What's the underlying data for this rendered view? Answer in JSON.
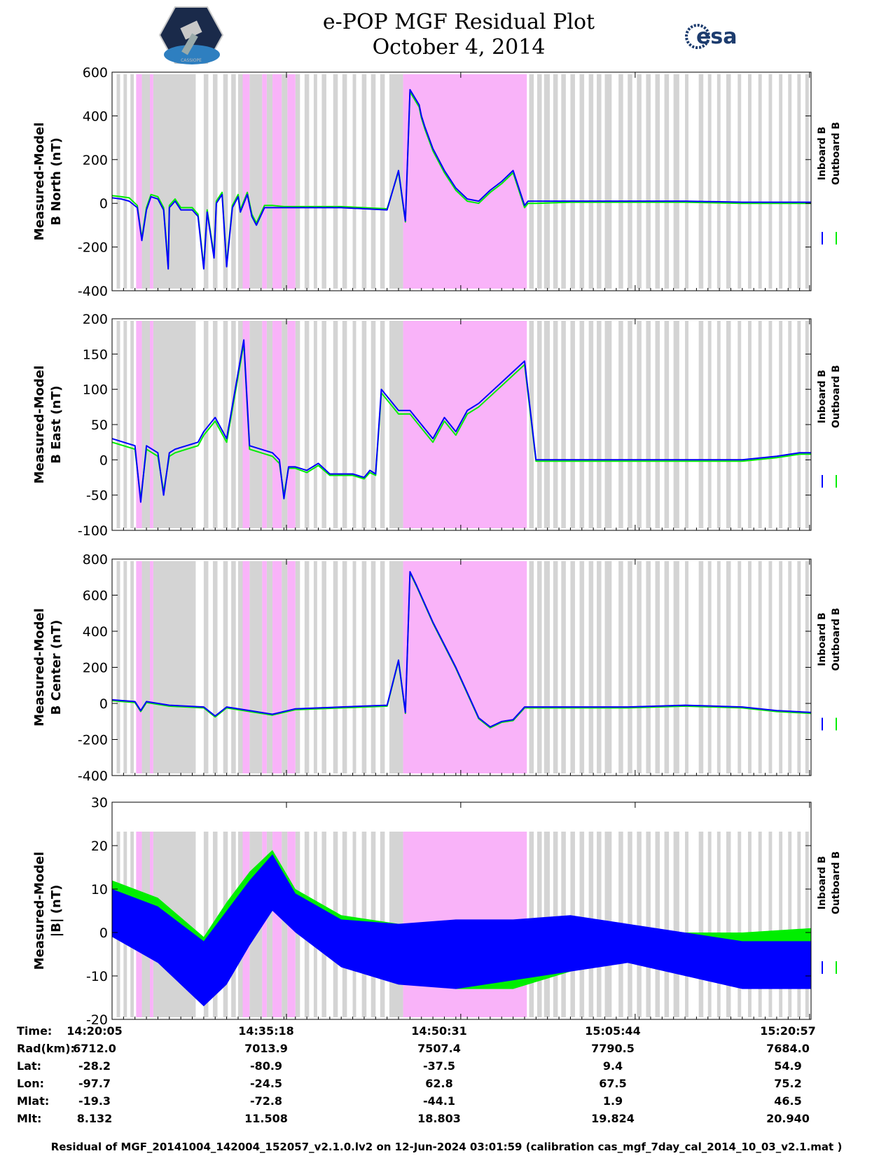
{
  "header": {
    "title_line1": "e-POP MGF Residual Plot",
    "title_line2": "October 4, 2014",
    "logo_left": "CASSIOPE",
    "logo_right": "esa"
  },
  "colors": {
    "inboard": "#0000ff",
    "outboard": "#00ee00",
    "gray_band": "#d4d4d4",
    "magenta_band": "#f9b3f9"
  },
  "chart_data": [
    {
      "type": "line",
      "title": "",
      "ylabel_lines": [
        "Measured-Model",
        "B North (nT)"
      ],
      "ylim": [
        -400,
        600
      ],
      "yticks": [
        -400,
        -200,
        0,
        200,
        400,
        600
      ],
      "legend": [
        "Inboard B",
        "Outboard B"
      ],
      "series": [
        {
          "name": "Inboard B",
          "x": [
            0,
            0.8,
            1.5,
            2.2,
            2.6,
            3.0,
            3.4,
            4.0,
            4.5,
            4.9,
            5.0,
            5.5,
            6.0,
            7.0,
            7.5,
            8.0,
            8.3,
            8.9,
            9.1,
            9.6,
            10.0,
            10.5,
            11.0,
            11.2,
            11.8,
            12.2,
            12.6,
            13.3,
            14.0,
            15.0,
            16.0,
            17.0,
            18.0,
            20.0,
            24.0,
            25.0,
            25.6,
            26.0,
            26.8,
            27.0,
            27.3,
            28.0,
            29.0,
            30.0,
            31.0,
            32.0,
            33.0,
            34.0,
            35.0,
            36.0,
            36.3,
            36.5,
            37.0,
            40.0,
            45.0,
            50.0,
            55.0,
            60.0,
            61.0
          ],
          "values": [
            25,
            20,
            10,
            -20,
            -170,
            -30,
            30,
            20,
            -30,
            -300,
            -20,
            10,
            -30,
            -30,
            -60,
            -300,
            -40,
            -250,
            0,
            40,
            -290,
            -20,
            30,
            -40,
            40,
            -60,
            -100,
            -20,
            -20,
            -20,
            -20,
            -20,
            -20,
            -20,
            -30,
            150,
            -80,
            520,
            450,
            400,
            350,
            250,
            150,
            70,
            20,
            10,
            60,
            100,
            150,
            -10,
            10,
            10,
            10,
            10,
            10,
            10,
            5,
            5,
            5
          ]
        },
        {
          "name": "Outboard B",
          "x": [
            0,
            0.8,
            1.5,
            2.2,
            2.6,
            3.0,
            3.4,
            4.0,
            4.5,
            4.9,
            5.0,
            5.5,
            6.0,
            7.0,
            7.5,
            8.0,
            8.3,
            8.9,
            9.1,
            9.6,
            10.0,
            10.5,
            11.0,
            11.2,
            11.8,
            12.2,
            12.6,
            13.3,
            14.0,
            15.0,
            16.0,
            17.0,
            18.0,
            20.0,
            24.0,
            25.0,
            25.6,
            26.0,
            26.8,
            27.0,
            27.3,
            28.0,
            29.0,
            30.0,
            31.0,
            32.0,
            33.0,
            34.0,
            35.0,
            36.0,
            36.3,
            36.5,
            37.0,
            40.0,
            45.0,
            50.0,
            55.0,
            60.0,
            61.0
          ],
          "values": [
            35,
            30,
            25,
            -10,
            -160,
            -20,
            40,
            30,
            -20,
            -290,
            -10,
            20,
            -20,
            -20,
            -50,
            -290,
            -30,
            -240,
            10,
            50,
            -280,
            -10,
            40,
            -30,
            50,
            -50,
            -90,
            -10,
            -10,
            -15,
            -15,
            -15,
            -15,
            -15,
            -25,
            145,
            -85,
            510,
            440,
            390,
            340,
            240,
            140,
            60,
            10,
            0,
            50,
            90,
            140,
            -20,
            0,
            0,
            0,
            5,
            5,
            5,
            0,
            0,
            0
          ]
        }
      ]
    },
    {
      "type": "line",
      "title": "",
      "ylabel_lines": [
        "Measured-Model",
        "B East (nT)"
      ],
      "ylim": [
        -100,
        200
      ],
      "yticks": [
        -100,
        -50,
        0,
        50,
        100,
        150,
        200
      ],
      "legend": [
        "Inboard B",
        "Outboard B"
      ],
      "series": [
        {
          "name": "Inboard B",
          "x": [
            0,
            1.0,
            2.0,
            2.5,
            3.0,
            4.0,
            4.5,
            5.0,
            5.5,
            6.5,
            7.5,
            8.0,
            9.0,
            10.0,
            11.5,
            12.0,
            14.0,
            14.6,
            15.0,
            15.4,
            16.0,
            17.0,
            18.0,
            19.0,
            20.0,
            21.0,
            22.0,
            22.5,
            23.0,
            23.5,
            24.5,
            25.0,
            26.0,
            27.0,
            28.0,
            29.0,
            30.0,
            31.0,
            32.0,
            33.0,
            34.0,
            35.0,
            36.0,
            37.0,
            40.0,
            45.0,
            50.0,
            55.0,
            58.0,
            60.0,
            61.0
          ],
          "values": [
            30,
            25,
            20,
            -60,
            20,
            10,
            -50,
            10,
            15,
            20,
            25,
            40,
            60,
            30,
            170,
            20,
            10,
            0,
            -55,
            -10,
            -10,
            -15,
            -5,
            -20,
            -20,
            -20,
            -25,
            -15,
            -20,
            100,
            80,
            70,
            70,
            50,
            30,
            60,
            40,
            70,
            80,
            95,
            110,
            125,
            140,
            0,
            0,
            0,
            0,
            0,
            5,
            10,
            10
          ]
        },
        {
          "name": "Outboard B",
          "x": [
            0,
            1.0,
            2.0,
            2.5,
            3.0,
            4.0,
            4.5,
            5.0,
            5.5,
            6.5,
            7.5,
            8.0,
            9.0,
            10.0,
            11.5,
            12.0,
            14.0,
            14.6,
            15.0,
            15.4,
            16.0,
            17.0,
            18.0,
            19.0,
            20.0,
            21.0,
            22.0,
            22.5,
            23.0,
            23.5,
            24.5,
            25.0,
            26.0,
            27.0,
            28.0,
            29.0,
            30.0,
            31.0,
            32.0,
            33.0,
            34.0,
            35.0,
            36.0,
            37.0,
            40.0,
            45.0,
            50.0,
            55.0,
            58.0,
            60.0,
            61.0
          ],
          "values": [
            25,
            20,
            15,
            -55,
            15,
            5,
            -45,
            5,
            10,
            15,
            20,
            35,
            55,
            25,
            165,
            15,
            5,
            -5,
            -50,
            -12,
            -12,
            -18,
            -8,
            -22,
            -22,
            -22,
            -27,
            -18,
            -22,
            95,
            75,
            65,
            65,
            45,
            25,
            55,
            35,
            65,
            75,
            90,
            105,
            120,
            135,
            -2,
            -2,
            -2,
            -2,
            -2,
            3,
            8,
            8
          ]
        }
      ]
    },
    {
      "type": "line",
      "title": "",
      "ylabel_lines": [
        "Measured-Model",
        "B Center (nT)"
      ],
      "ylim": [
        -400,
        800
      ],
      "yticks": [
        -400,
        -200,
        0,
        200,
        400,
        600,
        800
      ],
      "legend": [
        "Inboard B",
        "Outboard B"
      ],
      "series": [
        {
          "name": "Inboard B",
          "x": [
            0,
            2.0,
            2.5,
            3.0,
            5.0,
            8.0,
            9.0,
            10.0,
            12.0,
            14.0,
            16.0,
            20.0,
            24.0,
            25.0,
            25.6,
            26.0,
            26.6,
            28.0,
            30.0,
            32.0,
            33.0,
            34.0,
            35.0,
            36.0,
            37.0,
            45.0,
            50.0,
            55.0,
            58.0,
            61.0
          ],
          "values": [
            20,
            10,
            -40,
            10,
            -10,
            -20,
            -70,
            -20,
            -40,
            -60,
            -30,
            -20,
            -10,
            240,
            -50,
            730,
            650,
            450,
            200,
            -80,
            -130,
            -100,
            -90,
            -20,
            -20,
            -20,
            -10,
            -20,
            -40,
            -50
          ]
        },
        {
          "name": "Outboard B",
          "x": [
            0,
            2.0,
            2.5,
            3.0,
            5.0,
            8.0,
            9.0,
            10.0,
            12.0,
            14.0,
            16.0,
            20.0,
            24.0,
            25.0,
            25.6,
            26.0,
            26.6,
            28.0,
            30.0,
            32.0,
            33.0,
            34.0,
            35.0,
            36.0,
            37.0,
            45.0,
            50.0,
            55.0,
            58.0,
            61.0
          ],
          "values": [
            15,
            5,
            -45,
            5,
            -15,
            -25,
            -75,
            -25,
            -45,
            -65,
            -35,
            -25,
            -15,
            235,
            -55,
            725,
            645,
            445,
            195,
            -85,
            -135,
            -105,
            -95,
            -25,
            -25,
            -25,
            -15,
            -25,
            -45,
            -55
          ]
        }
      ]
    },
    {
      "type": "line",
      "title": "",
      "ylabel_lines": [
        "Measured-Model",
        "|B| (nT)"
      ],
      "ylim": [
        -20,
        30
      ],
      "yticks": [
        -20,
        -10,
        0,
        10,
        20,
        30
      ],
      "legend": [
        "Inboard B",
        "Outboard B"
      ],
      "series": [
        {
          "name": "Inboard B (upper envelope)",
          "x": [
            0,
            4,
            8,
            10,
            12,
            14,
            16,
            20,
            25,
            30,
            35,
            40,
            45,
            50,
            55,
            61
          ],
          "values": [
            10,
            6,
            -2,
            5,
            12,
            18,
            9,
            3,
            2,
            3,
            3,
            4,
            2,
            0,
            -2,
            -2
          ]
        },
        {
          "name": "Inboard B (lower envelope)",
          "x": [
            0,
            4,
            8,
            10,
            12,
            14,
            16,
            20,
            25,
            30,
            35,
            40,
            45,
            50,
            55,
            61
          ],
          "values": [
            -1,
            -7,
            -17,
            -12,
            -3,
            5,
            0,
            -8,
            -12,
            -13,
            -11,
            -9,
            -7,
            -10,
            -13,
            -13
          ]
        },
        {
          "name": "Outboard B (upper envelope)",
          "x": [
            0,
            4,
            8,
            10,
            12,
            14,
            16,
            20,
            25,
            30,
            35,
            40,
            45,
            50,
            55,
            61
          ],
          "values": [
            12,
            8,
            -1,
            7,
            14,
            19,
            10,
            4,
            2,
            2,
            2,
            2,
            1,
            0,
            0,
            1
          ]
        },
        {
          "name": "Outboard B (lower envelope)",
          "x": [
            0,
            4,
            8,
            10,
            12,
            14,
            16,
            20,
            25,
            30,
            35,
            40,
            45,
            50,
            55,
            61
          ],
          "values": [
            3,
            -5,
            -15,
            -10,
            -2,
            6,
            1,
            -6,
            -11,
            -13,
            -13,
            -9,
            -5,
            -6,
            -9,
            -10
          ]
        }
      ]
    }
  ],
  "bands": {
    "x_unit": "minutes since 14:20:05",
    "magenta_intervals": [
      [
        2.1,
        2.6
      ],
      [
        3.3,
        3.6
      ],
      [
        11.4,
        12.0
      ],
      [
        13.1,
        13.5
      ],
      [
        14.0,
        14.8
      ],
      [
        15.3,
        16.0
      ],
      [
        25.4,
        36.2
      ]
    ],
    "gray_intervals": [
      [
        0.4,
        0.7
      ],
      [
        1.0,
        1.3
      ],
      [
        1.6,
        1.9
      ],
      [
        2.6,
        3.3
      ],
      [
        3.6,
        7.3
      ],
      [
        8.0,
        8.4
      ],
      [
        8.8,
        9.2
      ],
      [
        9.7,
        10.1
      ],
      [
        10.4,
        10.8
      ],
      [
        11.0,
        11.4
      ],
      [
        12.0,
        13.1
      ],
      [
        13.5,
        14.0
      ],
      [
        14.8,
        15.3
      ],
      [
        16.0,
        16.4
      ],
      [
        16.8,
        17.2
      ],
      [
        17.6,
        17.9
      ],
      [
        18.3,
        18.7
      ],
      [
        19.3,
        19.7
      ],
      [
        20.1,
        20.5
      ],
      [
        21.0,
        21.3
      ],
      [
        21.8,
        22.2
      ],
      [
        22.6,
        23.0
      ],
      [
        23.4,
        23.8
      ],
      [
        24.2,
        25.4
      ],
      [
        36.4,
        36.8
      ],
      [
        37.1,
        37.5
      ],
      [
        37.7,
        38.2
      ],
      [
        38.5,
        38.9
      ],
      [
        39.2,
        39.6
      ],
      [
        40.0,
        40.4
      ],
      [
        40.8,
        41.2
      ],
      [
        41.6,
        42.0
      ],
      [
        42.3,
        42.7
      ],
      [
        43.0,
        43.6
      ],
      [
        44.2,
        44.6
      ],
      [
        45.0,
        45.4
      ],
      [
        45.8,
        46.2
      ],
      [
        46.6,
        47.0
      ],
      [
        47.4,
        47.8
      ],
      [
        48.2,
        48.6
      ],
      [
        49.0,
        49.5
      ],
      [
        50.0,
        50.3
      ],
      [
        51.2,
        51.6
      ],
      [
        52.0,
        52.3
      ],
      [
        52.8,
        53.1
      ],
      [
        53.6,
        54.0
      ],
      [
        54.6,
        54.9
      ],
      [
        55.5,
        55.8
      ],
      [
        56.4,
        56.7
      ],
      [
        57.3,
        57.6
      ],
      [
        58.2,
        58.5
      ],
      [
        59.0,
        59.3
      ],
      [
        59.8,
        60.1
      ],
      [
        60.5,
        60.8
      ]
    ]
  },
  "x_axis": {
    "xlim": [
      0,
      61
    ],
    "tick_minutes": [
      0,
      15.22,
      30.43,
      45.65,
      60.87
    ]
  },
  "info_table": {
    "labels": [
      "Time:",
      "Rad(km):",
      "Lat:",
      "Lon:",
      "Mlat:",
      "Mlt:"
    ],
    "columns": [
      [
        "14:20:05",
        "6712.0",
        "-28.2",
        "-97.7",
        "-19.3",
        "8.132"
      ],
      [
        "14:35:18",
        "7013.9",
        "-80.9",
        "-24.5",
        "-72.8",
        "11.508"
      ],
      [
        "14:50:31",
        "7507.4",
        "-37.5",
        "62.8",
        "-44.1",
        "18.803"
      ],
      [
        "15:05:44",
        "7790.5",
        "9.4",
        "67.5",
        "1.9",
        "19.824"
      ],
      [
        "15:20:57",
        "7684.0",
        "54.9",
        "75.2",
        "46.5",
        "20.940"
      ]
    ]
  },
  "footer": "Residual of MGF_20141004_142004_152057_v2.1.0.lv2 on 12-Jun-2024 03:01:59 (calibration cas_mgf_7day_cal_2014_10_03_v2.1.mat )"
}
